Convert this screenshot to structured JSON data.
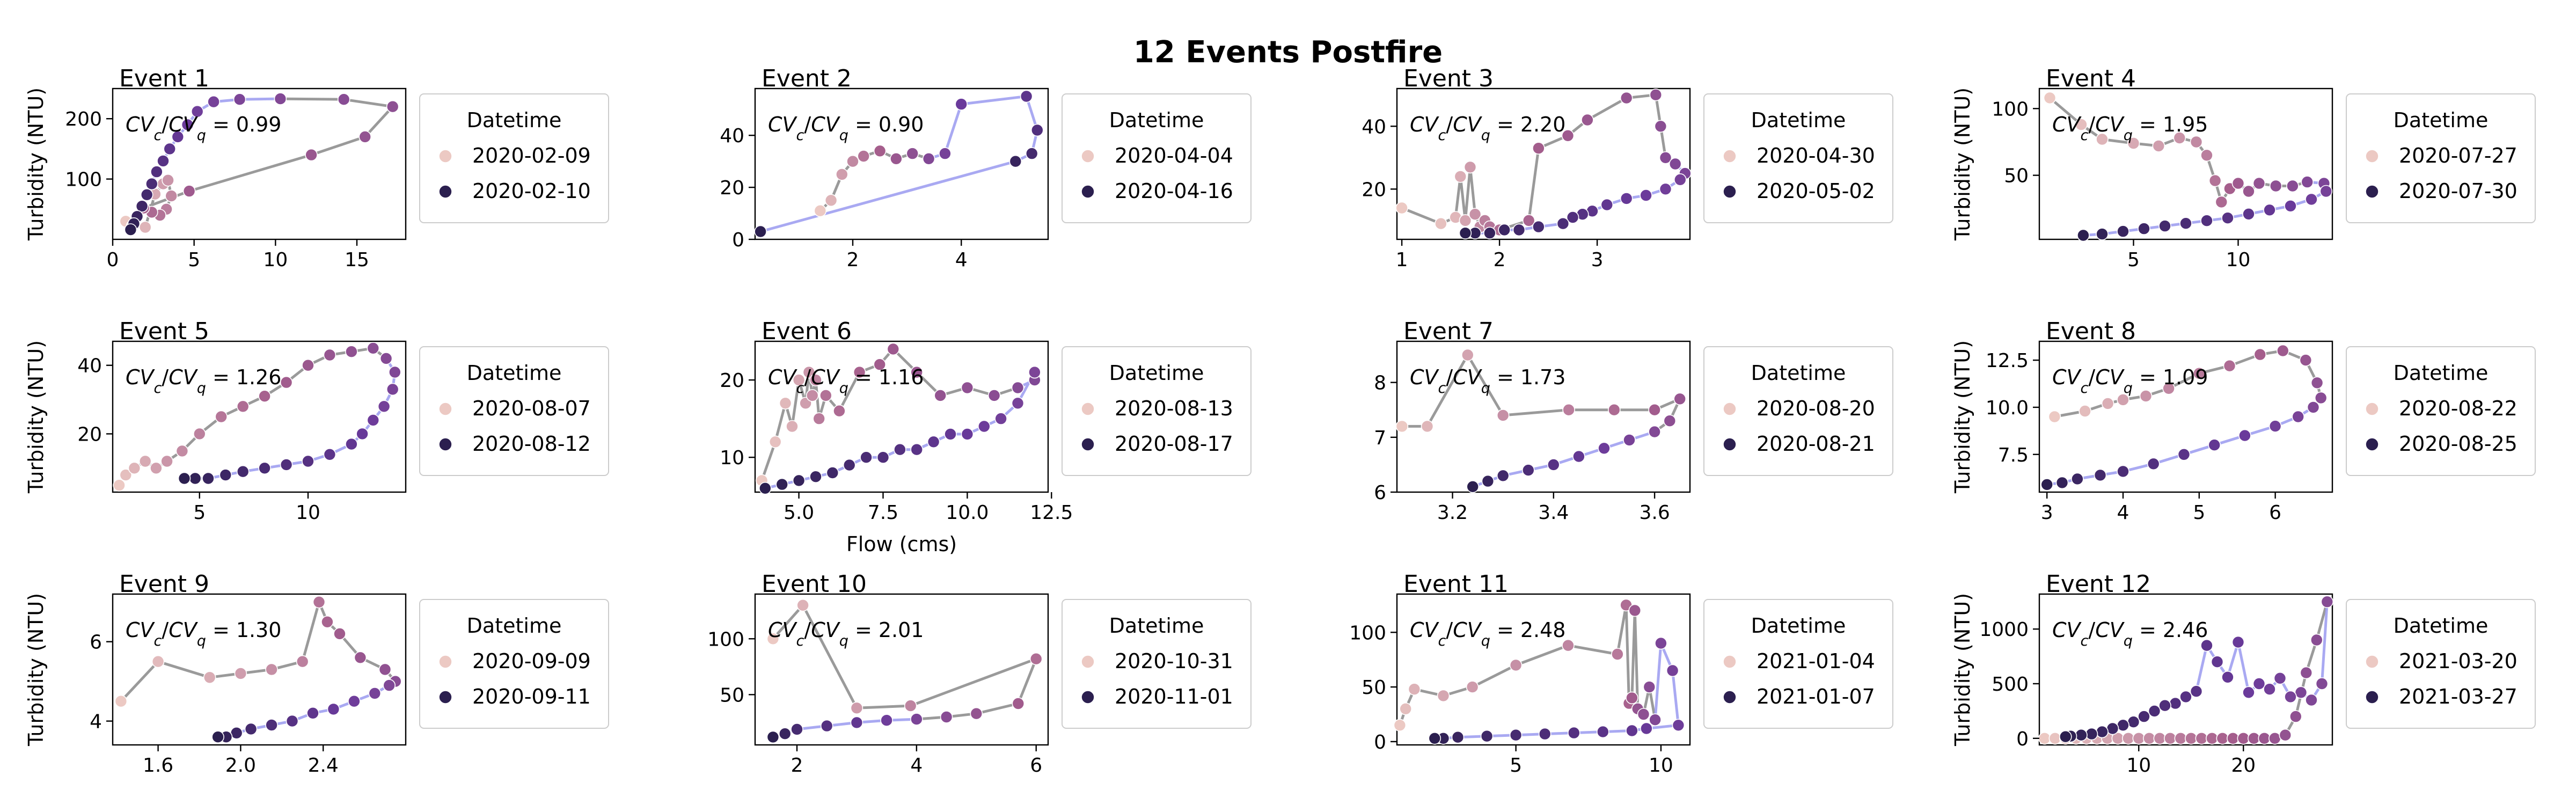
{
  "figure": {
    "title": "12 Events Postfire"
  },
  "legend_title": "Datetime",
  "shared_ylabel": "Turbidity (NTU)",
  "shared_xlabel": "Flow (cms)",
  "colors": {
    "hysteresis_line": "#9a9a9a",
    "loop_line": "#9a9af0",
    "early": "#ecc9c3",
    "mid": "#a55e8c",
    "late": "#6a3a9b",
    "end": "#2b1f4f"
  },
  "chart_data": [
    {
      "type": "scatter",
      "title": "Event 1",
      "annotation": "CV_c/CV_q = 0.99",
      "cv_value": "0.99",
      "xlim": [
        0,
        18
      ],
      "ylim": [
        0,
        250
      ],
      "xticks": [
        0,
        5,
        10,
        15
      ],
      "yticks": [
        100,
        200
      ],
      "xlabel": "",
      "ylabel": "Turbidity (NTU)",
      "legend": [
        "2020-02-09",
        "2020-02-10"
      ],
      "series": [
        {
          "x": [
            0.8,
            1.2,
            2.0,
            2.6,
            3.1,
            3.4,
            3.6,
            3.3,
            2.9,
            2.4,
            1.9,
            4.7,
            12.2,
            15.5,
            17.2,
            14.2,
            10.3,
            7.8,
            6.2,
            5.2,
            4.6,
            4.0,
            3.5,
            3.1,
            2.7,
            2.4,
            2.1,
            1.8,
            1.5,
            1.3,
            1.1
          ],
          "y": [
            30,
            22,
            20,
            75,
            92,
            98,
            72,
            50,
            40,
            45,
            52,
            80,
            140,
            170,
            220,
            232,
            233,
            232,
            228,
            212,
            190,
            170,
            150,
            130,
            112,
            92,
            74,
            55,
            38,
            26,
            16
          ]
        }
      ]
    },
    {
      "type": "scatter",
      "title": "Event 2",
      "annotation": "CV_c/CV_q = 0.90",
      "cv_value": "0.90",
      "xlim": [
        0.2,
        5.6
      ],
      "ylim": [
        0,
        58
      ],
      "xticks": [
        2,
        4
      ],
      "yticks": [
        0,
        20,
        40
      ],
      "xlabel": "",
      "ylabel": "",
      "legend": [
        "2020-04-04",
        "2020-04-16"
      ],
      "series": [
        {
          "x": [
            1.4,
            1.6,
            1.8,
            2.0,
            2.2,
            2.5,
            2.8,
            3.1,
            3.4,
            3.7,
            4.0,
            5.2,
            5.4,
            5.3,
            5.0,
            0.3
          ],
          "y": [
            11,
            15,
            25,
            30,
            32,
            34,
            31,
            33,
            31,
            33,
            52,
            55,
            42,
            33,
            30,
            3
          ]
        }
      ]
    },
    {
      "type": "scatter",
      "title": "Event 3",
      "annotation": "CV_c/CV_q = 2.20",
      "cv_value": "2.20",
      "xlim": [
        0.95,
        3.95
      ],
      "ylim": [
        4,
        52
      ],
      "xticks": [
        1,
        2,
        3
      ],
      "yticks": [
        20,
        40
      ],
      "xlabel": "",
      "ylabel": "",
      "legend": [
        "2020-04-30",
        "2020-05-02"
      ],
      "series": [
        {
          "x": [
            1.0,
            1.4,
            1.55,
            1.6,
            1.65,
            1.7,
            1.75,
            1.8,
            1.85,
            1.9,
            2.0,
            2.3,
            2.4,
            2.7,
            2.9,
            3.3,
            3.6,
            3.65,
            3.7,
            3.8,
            3.9,
            3.85,
            3.7,
            3.5,
            3.3,
            3.1,
            2.95,
            2.85,
            2.75,
            2.65,
            2.4,
            2.2,
            2.05,
            1.9,
            1.75,
            1.65
          ],
          "y": [
            14,
            9,
            11,
            24,
            10,
            27,
            12,
            8,
            10,
            8,
            7,
            10,
            33,
            37,
            42,
            49,
            50,
            40,
            30,
            28,
            25,
            23,
            20,
            18,
            17,
            15,
            13,
            12,
            11,
            9,
            8,
            7,
            7,
            6,
            6,
            6
          ]
        }
      ]
    },
    {
      "type": "scatter",
      "title": "Event 4",
      "annotation": "CV_c/CV_q = 1.95",
      "cv_value": "1.95",
      "xlim": [
        0.5,
        14.5
      ],
      "ylim": [
        2,
        115
      ],
      "xticks": [
        5,
        10
      ],
      "yticks": [
        50,
        100
      ],
      "xlabel": "",
      "ylabel": "Turbidity (NTU)",
      "legend": [
        "2020-07-27",
        "2020-07-30"
      ],
      "series": [
        {
          "x": [
            1.0,
            2.5,
            3.5,
            5.0,
            6.2,
            7.2,
            8.0,
            8.5,
            8.9,
            9.2,
            9.6,
            10.0,
            10.5,
            11.0,
            11.8,
            12.6,
            13.3,
            14.1,
            14.2,
            13.5,
            12.5,
            11.5,
            10.5,
            9.5,
            8.5,
            7.5,
            6.5,
            5.5,
            4.5,
            3.5,
            2.6
          ],
          "y": [
            108,
            88,
            77,
            74,
            72,
            78,
            75,
            65,
            46,
            30,
            40,
            44,
            38,
            44,
            42,
            42,
            45,
            44,
            38,
            32,
            27,
            24,
            21,
            18,
            16,
            14,
            12,
            10,
            8,
            6,
            5
          ]
        }
      ]
    },
    {
      "type": "scatter",
      "title": "Event 5",
      "annotation": "CV_c/CV_q = 1.26",
      "cv_value": "1.26",
      "xlim": [
        1,
        14.5
      ],
      "ylim": [
        3,
        47
      ],
      "xticks": [
        5,
        10
      ],
      "yticks": [
        20,
        40
      ],
      "xlabel": "",
      "ylabel": "Turbidity (NTU)",
      "legend": [
        "2020-08-07",
        "2020-08-12"
      ],
      "series": [
        {
          "x": [
            1.3,
            1.6,
            2.0,
            2.5,
            3.0,
            3.5,
            4.2,
            5.0,
            6.0,
            7.0,
            8.0,
            9.0,
            10.0,
            11.0,
            12.0,
            13.0,
            13.6,
            14.0,
            13.9,
            13.5,
            13.0,
            12.5,
            12.0,
            11.0,
            10.0,
            9.0,
            8.0,
            7.0,
            6.2,
            5.4,
            4.8,
            4.3
          ],
          "y": [
            5,
            8,
            10,
            12,
            10,
            12,
            15,
            20,
            25,
            28,
            31,
            35,
            40,
            43,
            44,
            45,
            42,
            38,
            33,
            28,
            24,
            20,
            17,
            14,
            12,
            11,
            10,
            9,
            8,
            7,
            7,
            7
          ]
        }
      ]
    },
    {
      "type": "scatter",
      "title": "Event 6",
      "annotation": "CV_c/CV_q = 1.16",
      "cv_value": "1.16",
      "xlim": [
        3.7,
        12.4
      ],
      "ylim": [
        5.5,
        25
      ],
      "xticks": [
        5,
        7.5,
        10,
        12.5
      ],
      "yticks": [
        10,
        20
      ],
      "xlabel": "Flow (cms)",
      "ylabel": "",
      "legend": [
        "2020-08-13",
        "2020-08-17"
      ],
      "series": [
        {
          "x": [
            3.9,
            4.3,
            4.6,
            4.8,
            5.0,
            5.2,
            5.3,
            5.4,
            5.5,
            5.6,
            5.8,
            6.2,
            6.8,
            7.4,
            7.8,
            8.5,
            9.2,
            10.0,
            10.8,
            11.5,
            12.0,
            12.0,
            11.5,
            11.0,
            10.5,
            10.0,
            9.5,
            9.0,
            8.5,
            8.0,
            7.5,
            7.0,
            6.5,
            6.0,
            5.5,
            5.0,
            4.5,
            4.0
          ],
          "y": [
            7,
            12,
            17,
            14,
            20,
            17,
            21,
            18,
            20,
            15,
            18,
            16,
            21,
            22,
            24,
            21,
            18,
            19,
            18,
            19,
            20,
            21,
            17,
            15,
            14,
            13,
            13,
            12,
            11,
            11,
            10,
            10,
            9,
            8,
            7.5,
            7,
            6.5,
            6
          ]
        }
      ]
    },
    {
      "type": "scatter",
      "title": "Event 7",
      "annotation": "CV_c/CV_q = 1.73",
      "cv_value": "1.73",
      "xlim": [
        3.09,
        3.67
      ],
      "ylim": [
        6,
        8.75
      ],
      "xticks": [
        3.2,
        3.4,
        3.6
      ],
      "yticks": [
        6,
        7,
        8
      ],
      "xlabel": "",
      "ylabel": "",
      "legend": [
        "2020-08-20",
        "2020-08-21"
      ],
      "series": [
        {
          "x": [
            3.1,
            3.15,
            3.23,
            3.3,
            3.43,
            3.52,
            3.6,
            3.65,
            3.63,
            3.6,
            3.55,
            3.5,
            3.45,
            3.4,
            3.35,
            3.3,
            3.27,
            3.24
          ],
          "y": [
            7.2,
            7.2,
            8.5,
            7.4,
            7.5,
            7.5,
            7.5,
            7.7,
            7.3,
            7.1,
            6.95,
            6.8,
            6.65,
            6.5,
            6.4,
            6.3,
            6.2,
            6.1
          ]
        }
      ]
    },
    {
      "type": "scatter",
      "title": "Event 8",
      "annotation": "CV_c/CV_q = 1.09",
      "cv_value": "1.09",
      "xlim": [
        2.9,
        6.75
      ],
      "ylim": [
        5.5,
        13.5
      ],
      "xticks": [
        3,
        4,
        5,
        6
      ],
      "yticks": [
        7.5,
        10.0,
        12.5
      ],
      "xlabel": "",
      "ylabel": "Turbidity (NTU)",
      "legend": [
        "2020-08-22",
        "2020-08-25"
      ],
      "series": [
        {
          "x": [
            3.1,
            3.5,
            3.8,
            4.0,
            4.3,
            4.6,
            5.0,
            5.4,
            5.8,
            6.1,
            6.4,
            6.55,
            6.6,
            6.5,
            6.3,
            6.0,
            5.6,
            5.2,
            4.8,
            4.4,
            4.0,
            3.7,
            3.4,
            3.2,
            3.0
          ],
          "y": [
            9.5,
            9.8,
            10.2,
            10.4,
            10.6,
            11.0,
            11.8,
            12.2,
            12.8,
            13.0,
            12.5,
            11.3,
            10.5,
            10.0,
            9.5,
            9.0,
            8.5,
            8.0,
            7.5,
            7.0,
            6.6,
            6.4,
            6.2,
            6.0,
            5.9
          ]
        }
      ]
    },
    {
      "type": "scatter",
      "title": "Event 9",
      "annotation": "CV_c/CV_q = 1.30",
      "cv_value": "1.30",
      "xlim": [
        1.38,
        2.8
      ],
      "ylim": [
        3.4,
        7.2
      ],
      "xticks": [
        1.6,
        2.0,
        2.4
      ],
      "yticks": [
        4,
        6
      ],
      "xlabel": "",
      "ylabel": "Turbidity (NTU)",
      "legend": [
        "2020-09-09",
        "2020-09-11"
      ],
      "series": [
        {
          "x": [
            1.42,
            1.6,
            1.85,
            2.0,
            2.15,
            2.3,
            2.38,
            2.42,
            2.48,
            2.58,
            2.7,
            2.75,
            2.72,
            2.65,
            2.55,
            2.45,
            2.35,
            2.25,
            2.15,
            2.05,
            1.98,
            1.93,
            1.89
          ],
          "y": [
            4.5,
            5.5,
            5.1,
            5.2,
            5.3,
            5.5,
            7.0,
            6.5,
            6.2,
            5.6,
            5.3,
            5.0,
            4.9,
            4.7,
            4.5,
            4.3,
            4.2,
            4.0,
            3.9,
            3.8,
            3.7,
            3.6,
            3.6
          ]
        }
      ]
    },
    {
      "type": "scatter",
      "title": "Event 10",
      "annotation": "CV_c/CV_q = 2.01",
      "cv_value": "2.01",
      "xlim": [
        1.3,
        6.2
      ],
      "ylim": [
        5,
        140
      ],
      "xticks": [
        2,
        4,
        6
      ],
      "yticks": [
        50,
        100
      ],
      "xlabel": "",
      "ylabel": "",
      "legend": [
        "2020-10-31",
        "2020-11-01"
      ],
      "series": [
        {
          "x": [
            1.6,
            2.1,
            3.0,
            3.9,
            6.0,
            5.7,
            5.0,
            4.5,
            4.0,
            3.5,
            3.0,
            2.5,
            2.0,
            1.8,
            1.6
          ],
          "y": [
            100,
            130,
            38,
            40,
            82,
            42,
            33,
            30,
            28,
            27,
            25,
            22,
            19,
            15,
            12
          ]
        }
      ]
    },
    {
      "type": "scatter",
      "title": "Event 11",
      "annotation": "CV_c/CV_q = 2.48",
      "cv_value": "2.48",
      "xlim": [
        0.9,
        11
      ],
      "ylim": [
        -3,
        135
      ],
      "xticks": [
        5,
        10
      ],
      "yticks": [
        0,
        50,
        100
      ],
      "xlabel": "",
      "ylabel": "",
      "legend": [
        "2021-01-04",
        "2021-01-07"
      ],
      "series": [
        {
          "x": [
            1.0,
            1.2,
            1.5,
            2.5,
            3.5,
            5.0,
            6.8,
            8.5,
            8.8,
            8.9,
            9.0,
            9.1,
            9.2,
            9.4,
            9.6,
            9.8,
            10.0,
            10.4,
            10.6,
            9.5,
            9.0,
            8.0,
            7.0,
            6.0,
            5.0,
            4.0,
            3.0,
            2.5,
            2.2
          ],
          "y": [
            15,
            30,
            48,
            42,
            50,
            70,
            88,
            80,
            125,
            35,
            40,
            120,
            30,
            25,
            50,
            20,
            90,
            65,
            15,
            12,
            10,
            9,
            8,
            7,
            6,
            5,
            4,
            3,
            3
          ]
        }
      ]
    },
    {
      "type": "scatter",
      "title": "Event 12",
      "annotation": "CV_c/CV_q = 2.46",
      "cv_value": "2.46",
      "xlim": [
        0.5,
        28.5
      ],
      "ylim": [
        -60,
        1320
      ],
      "xticks": [
        10,
        20
      ],
      "yticks": [
        0,
        500,
        1000
      ],
      "xlabel": "",
      "ylabel": "Turbidity (NTU)",
      "legend": [
        "2021-03-20",
        "2021-03-27"
      ],
      "series": [
        {
          "x": [
            1,
            2,
            3,
            4,
            5,
            6,
            7,
            8,
            9,
            10,
            11,
            12,
            13,
            14,
            15,
            16,
            17,
            18,
            19,
            20,
            21,
            22,
            23,
            24,
            25,
            26,
            27,
            28,
            27.5,
            26.5,
            25.5,
            24.5,
            23.5,
            22.5,
            21.5,
            20.5,
            19.5,
            18.5,
            17.5,
            16.5,
            15.5,
            14.5,
            13.5,
            12.5,
            11.5,
            10.5,
            9.5,
            8.5,
            7.5,
            6.5,
            5.5,
            4.5,
            3.5,
            3.0
          ],
          "y": [
            0,
            0,
            0,
            0,
            0,
            0,
            0,
            0,
            0,
            0,
            0,
            0,
            0,
            0,
            0,
            0,
            0,
            0,
            0,
            0,
            0,
            0,
            0,
            30,
            200,
            600,
            900,
            1250,
            500,
            350,
            420,
            380,
            550,
            450,
            500,
            420,
            880,
            560,
            700,
            850,
            430,
            380,
            320,
            300,
            250,
            200,
            150,
            120,
            90,
            60,
            40,
            30,
            20,
            15
          ]
        }
      ]
    }
  ]
}
